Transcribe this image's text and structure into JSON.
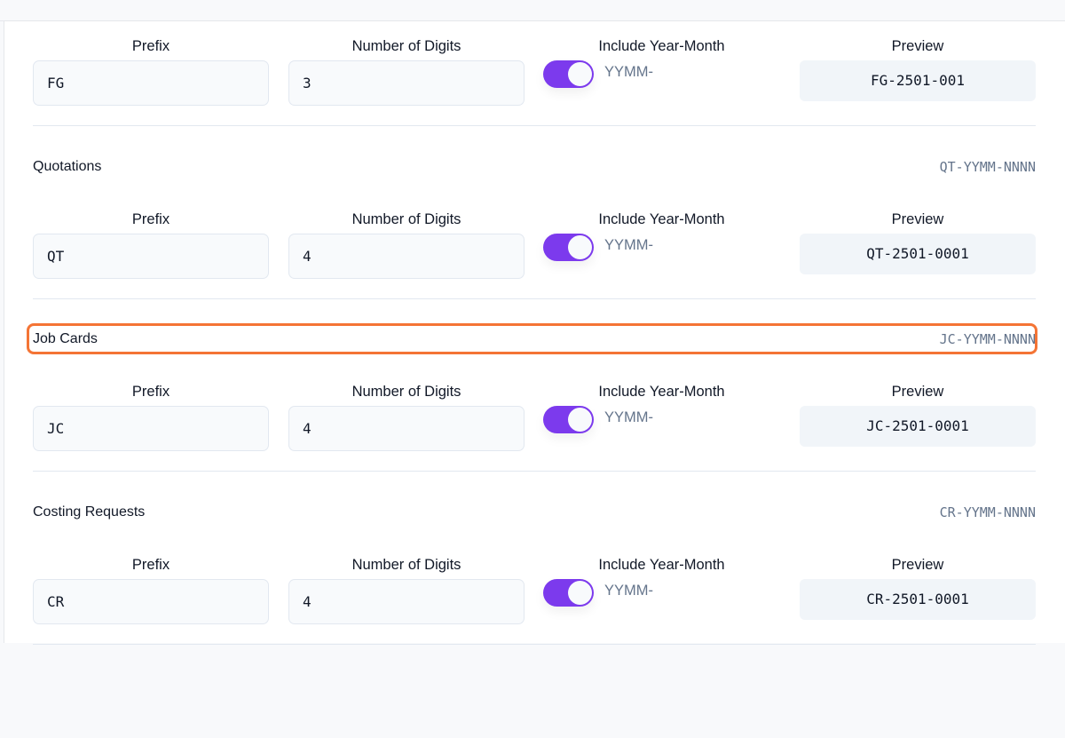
{
  "labels": {
    "prefix": "Prefix",
    "digits": "Number of Digits",
    "year_month": "Include Year-Month",
    "preview": "Preview",
    "yymm": "YYMM-"
  },
  "accent_color": "#7c3aed",
  "highlight_color": "#f47435",
  "sections": [
    {
      "title": "",
      "pattern": "",
      "prefix": "FG",
      "digits": "3",
      "include_year_month": true,
      "preview": "FG-2501-001"
    },
    {
      "title": "Quotations",
      "pattern": "QT-YYMM-NNNN",
      "prefix": "QT",
      "digits": "4",
      "include_year_month": true,
      "preview": "QT-2501-0001"
    },
    {
      "title": "Job Cards",
      "pattern": "JC-YYMM-NNNN",
      "prefix": "JC",
      "digits": "4",
      "include_year_month": true,
      "preview": "JC-2501-0001"
    },
    {
      "title": "Costing Requests",
      "pattern": "CR-YYMM-NNNN",
      "prefix": "CR",
      "digits": "4",
      "include_year_month": true,
      "preview": "CR-2501-0001"
    }
  ]
}
